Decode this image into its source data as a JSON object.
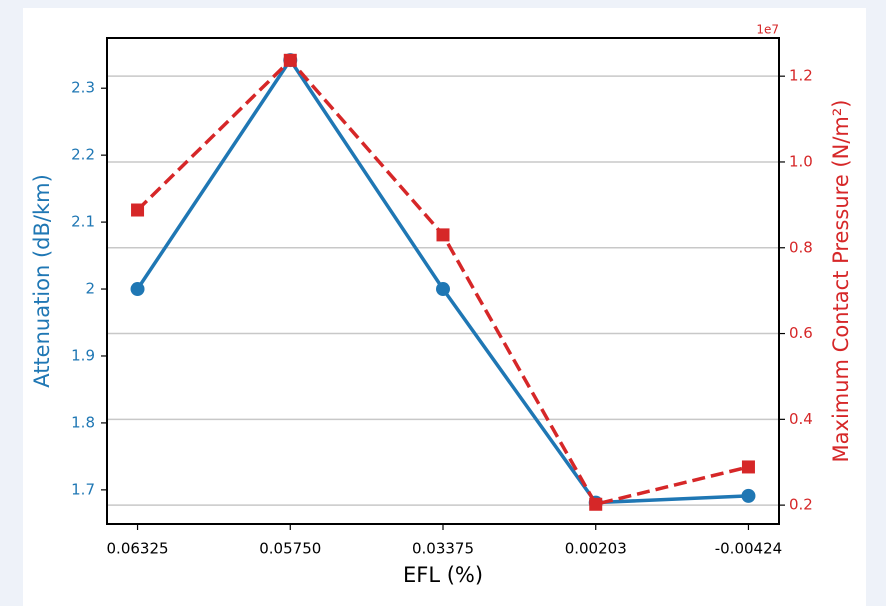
{
  "chart_data": {
    "type": "line",
    "categories": [
      "0.06325",
      "0.05750",
      "0.03375",
      "0.00203",
      "-0.00424"
    ],
    "xlabel": "EFL (%)",
    "ylabel": "Attenuation (dB/km)",
    "y2label": "Maximum Contact Pressure (N/m²)",
    "y2offset": "1e7",
    "series": [
      {
        "name": "Attenuation",
        "color": "#1f77b4",
        "linestyle": "solid",
        "marker": "circle",
        "values": [
          2.0,
          2.342,
          2.0,
          1.681,
          1.691
        ]
      },
      {
        "name": "Maximum Contact Pressure",
        "color": "#d62728",
        "linestyle": "dashed",
        "marker": "square",
        "axis": "y2",
        "values": [
          8880000,
          12370000,
          8300000,
          2020000,
          2890000
        ]
      }
    ],
    "ylim": [
      1.649,
      2.375
    ],
    "yticks": [
      1.7,
      1.8,
      1.9,
      2.0,
      2.1,
      2.2,
      2.3
    ],
    "y2lim": [
      1560000,
      12890000
    ],
    "y2ticks": [
      {
        "value": 2000000,
        "label": "0.2"
      },
      {
        "value": 4000000,
        "label": "0.4"
      },
      {
        "value": 6000000,
        "label": "0.6"
      },
      {
        "value": 8000000,
        "label": "0.8"
      },
      {
        "value": 10000000,
        "label": "1.0"
      },
      {
        "value": 12000000,
        "label": "1.2"
      }
    ],
    "grid": "y2"
  }
}
